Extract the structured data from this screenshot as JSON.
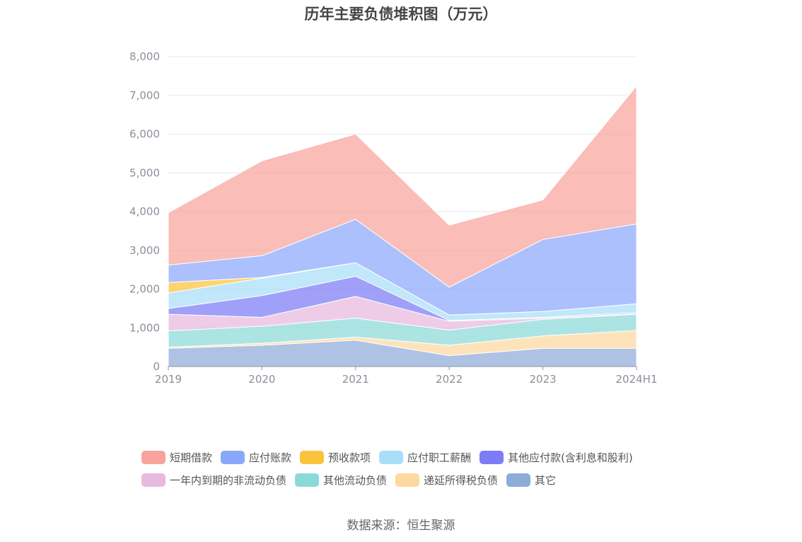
{
  "chart_data": {
    "type": "area",
    "stacked": true,
    "title": "历年主要负债堆积图（万元）",
    "categories": [
      "2019",
      "2020",
      "2021",
      "2022",
      "2023",
      "2024H1"
    ],
    "y_ticks": [
      "0",
      "1,000",
      "2,000",
      "3,000",
      "4,000",
      "5,000",
      "6,000",
      "7,000",
      "8,000"
    ],
    "ylim": [
      0,
      8000
    ],
    "grid": true,
    "legend_position": "bottom",
    "series": [
      {
        "name": "短期借款",
        "color": "#f8a39b",
        "values": [
          1350,
          2450,
          2200,
          1600,
          1020,
          3560
        ]
      },
      {
        "name": "应付账款",
        "color": "#8aa8fb",
        "values": [
          450,
          560,
          1120,
          720,
          1860,
          2060
        ]
      },
      {
        "name": "预收款项",
        "color": "#fbc33b",
        "values": [
          270,
          20,
          0,
          0,
          0,
          0
        ]
      },
      {
        "name": "应付职工薪酬",
        "color": "#a8def8",
        "values": [
          400,
          450,
          350,
          140,
          150,
          220
        ]
      },
      {
        "name": "其他应付款(含利息和股利)",
        "color": "#7c7cf6",
        "values": [
          150,
          560,
          520,
          20,
          20,
          30
        ]
      },
      {
        "name": "一年内到期的非流动负债",
        "color": "#e8b9de",
        "values": [
          430,
          230,
          560,
          230,
          30,
          20
        ]
      },
      {
        "name": "其他流动负债",
        "color": "#8cd9d9",
        "values": [
          420,
          440,
          490,
          390,
          430,
          420
        ]
      },
      {
        "name": "递延所得税负债",
        "color": "#fdd8a0",
        "values": [
          30,
          50,
          80,
          270,
          320,
          460
        ]
      },
      {
        "name": "其它",
        "color": "#8fabd9",
        "values": [
          470,
          550,
          680,
          280,
          470,
          470
        ]
      }
    ],
    "legend_rows": [
      [
        0,
        1,
        2,
        3,
        4
      ],
      [
        5,
        6,
        7,
        8
      ]
    ]
  },
  "source": "数据来源：恒生聚源"
}
